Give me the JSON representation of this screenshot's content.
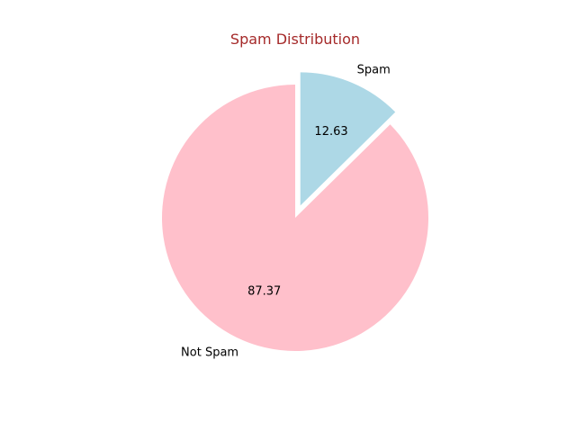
{
  "chart_data": {
    "type": "pie",
    "title": "Spam Distribution",
    "title_color": "#a52a2a",
    "start_angle_deg": 90,
    "counterclockwise": false,
    "slices": [
      {
        "label": "Spam",
        "value": 12.63,
        "pct_text": "12.63",
        "color": "#add8e6",
        "exploded": true
      },
      {
        "label": "Not Spam",
        "value": 87.37,
        "pct_text": "87.37",
        "color": "#ffc0cb",
        "exploded": false
      }
    ]
  }
}
